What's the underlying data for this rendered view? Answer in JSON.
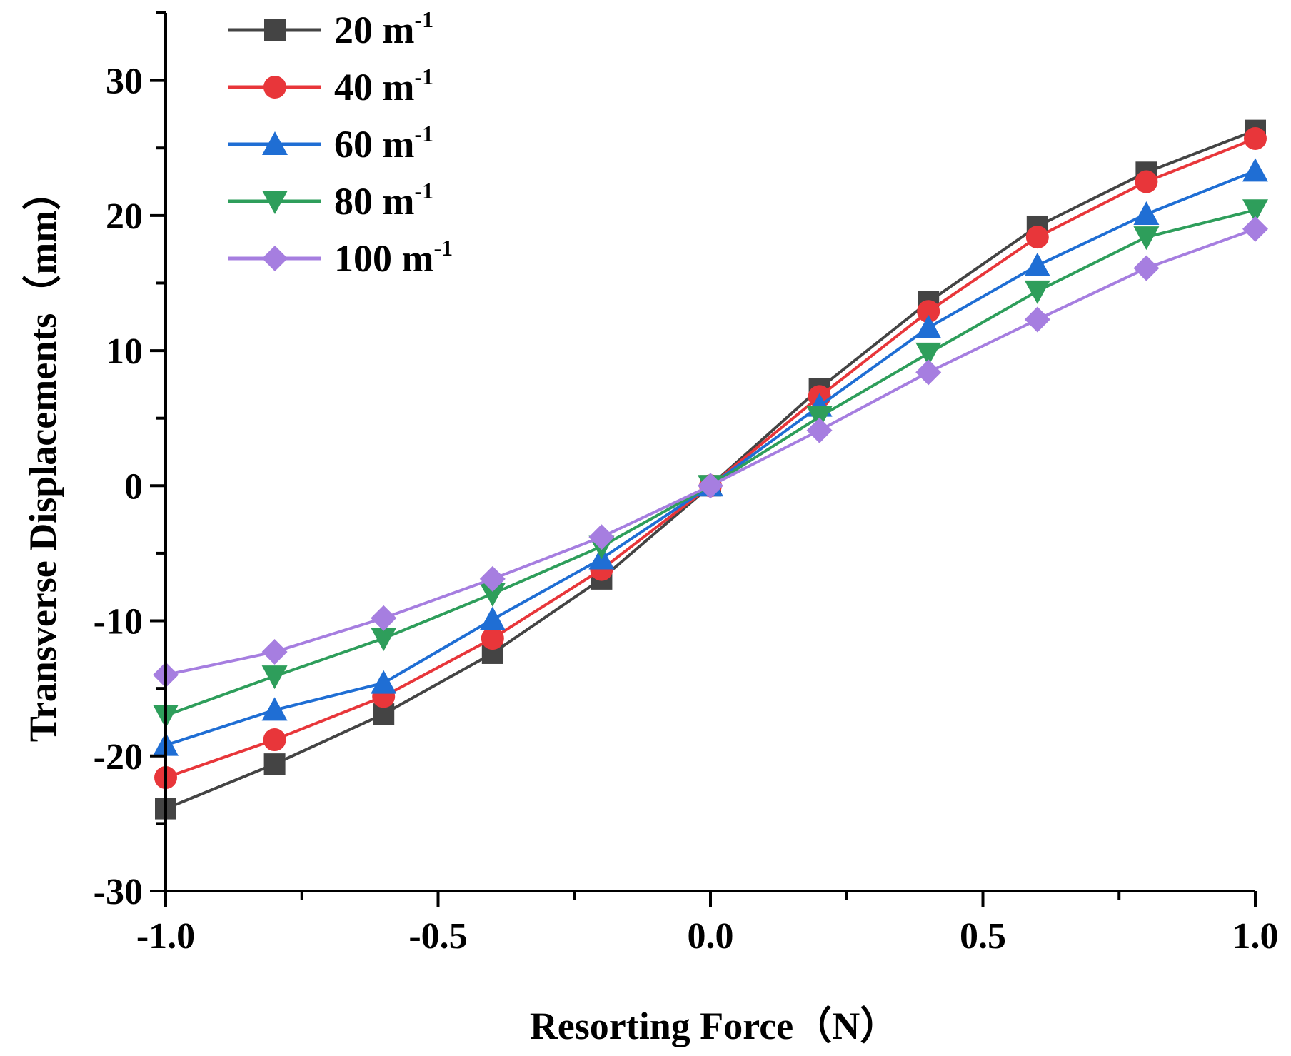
{
  "chart_data": {
    "type": "line",
    "title": "",
    "xlabel": "Resorting Force（N）",
    "ylabel": "Transverse Displacements（mm）",
    "xlim": [
      -1.0,
      1.0
    ],
    "ylim": [
      -30,
      35
    ],
    "x_ticks": [
      -1.0,
      -0.5,
      0.0,
      0.5,
      1.0
    ],
    "x_tick_labels": [
      "-1.0",
      "-0.5",
      "0.0",
      "0.5",
      "1.0"
    ],
    "y_ticks": [
      -30,
      -20,
      -10,
      0,
      10,
      20,
      30
    ],
    "y_tick_labels": [
      "-30",
      "-20",
      "-10",
      "0",
      "10",
      "20",
      "30"
    ],
    "grid": false,
    "legend_position": "top-left",
    "x": [
      -1.0,
      -0.8,
      -0.6,
      -0.4,
      -0.2,
      0.0,
      0.2,
      0.4,
      0.6,
      0.8,
      1.0
    ],
    "series": [
      {
        "name": "20 m",
        "sup": "-1",
        "color": "#444444",
        "marker": "square",
        "values": [
          -23.9,
          -20.6,
          -16.9,
          -12.4,
          -6.9,
          0,
          7.2,
          13.6,
          19.2,
          23.2,
          26.3
        ]
      },
      {
        "name": "40 m",
        "sup": "-1",
        "color": "#e8363a",
        "marker": "circle",
        "values": [
          -21.6,
          -18.8,
          -15.6,
          -11.3,
          -6.2,
          0,
          6.6,
          12.9,
          18.4,
          22.5,
          25.7
        ]
      },
      {
        "name": "60 m",
        "sup": "-1",
        "color": "#1f6ed4",
        "marker": "triangle-up",
        "values": [
          -19.2,
          -16.6,
          -14.6,
          -9.9,
          -5.4,
          0,
          5.9,
          11.7,
          16.3,
          20.1,
          23.3
        ]
      },
      {
        "name": "80 m",
        "sup": "-1",
        "color": "#2e9e5b",
        "marker": "triangle-down",
        "values": [
          -17.0,
          -14.1,
          -11.3,
          -8.0,
          -4.5,
          0,
          5.1,
          9.8,
          14.4,
          18.4,
          20.4
        ]
      },
      {
        "name": "100 m",
        "sup": "-1",
        "color": "#a67ee0",
        "marker": "diamond",
        "values": [
          -14.0,
          -12.3,
          -9.8,
          -6.9,
          -3.8,
          0,
          4.1,
          8.4,
          12.3,
          16.1,
          19.0
        ]
      }
    ]
  }
}
